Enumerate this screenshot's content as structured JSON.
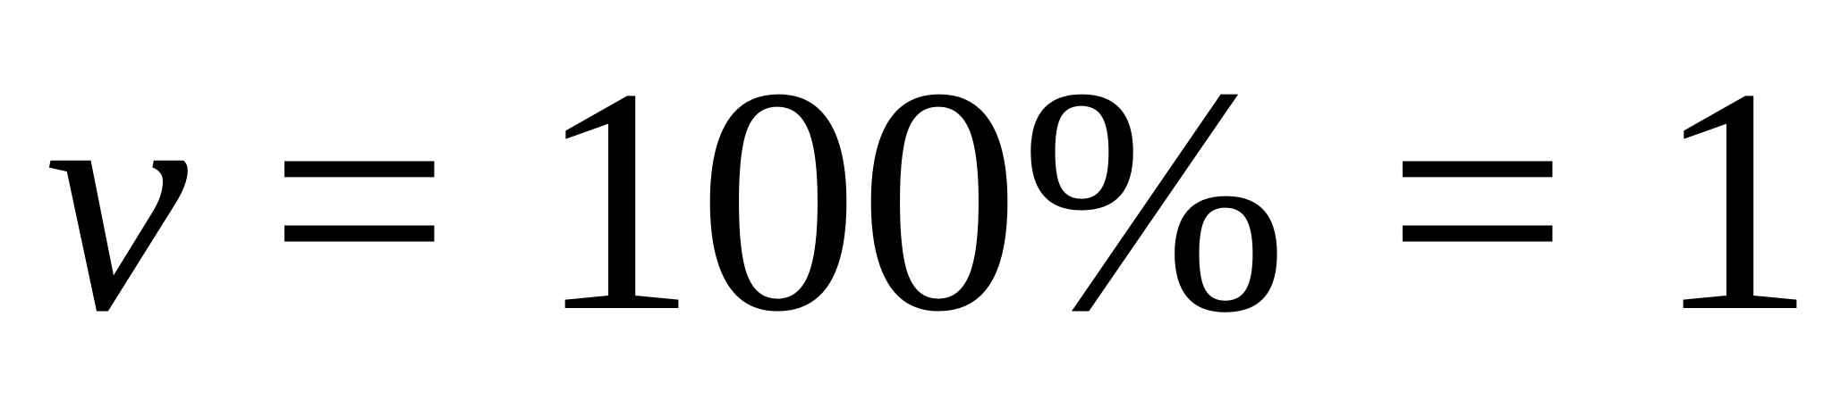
{
  "equation": {
    "variable": "v",
    "equals_1": "=",
    "percent_value": "100%",
    "equals_2": "=",
    "result": "1"
  },
  "colors": {
    "text": "#000000",
    "background": "#ffffff"
  }
}
